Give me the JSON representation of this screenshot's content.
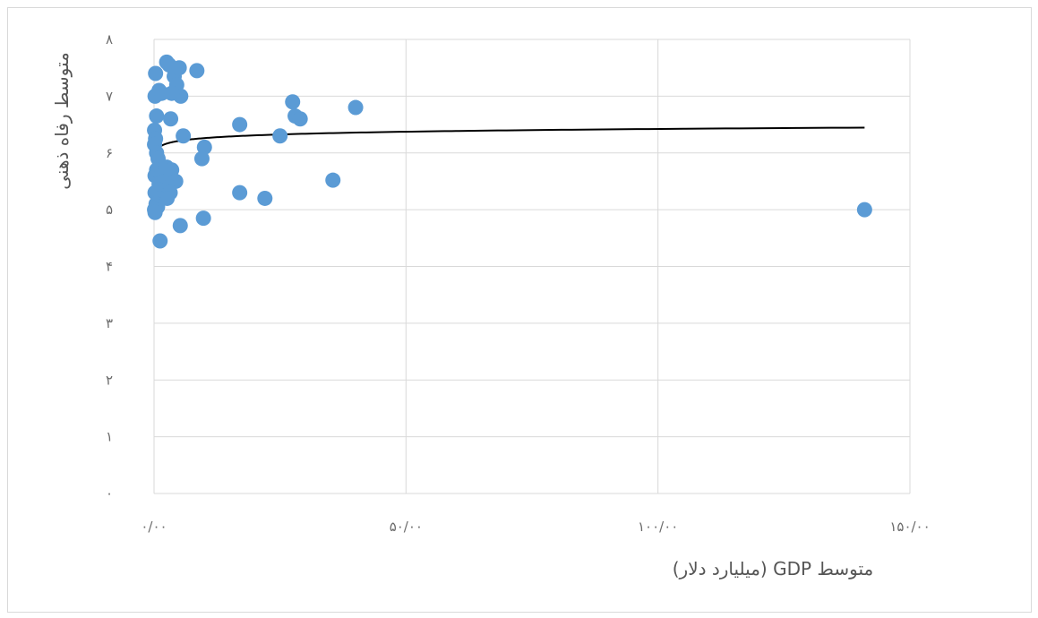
{
  "chart_data": {
    "type": "scatter",
    "title": "",
    "xlabel": "متوسط GDP (میلیارد دلار)",
    "ylabel": "متوسط رفاه ذهنی",
    "xlim": [
      0,
      150
    ],
    "ylim": [
      0,
      8
    ],
    "x_ticks": [
      0,
      50,
      100,
      150
    ],
    "x_tick_labels": [
      "۰/۰۰",
      "۵۰/۰۰",
      "۱۰۰/۰۰",
      "۱۵۰/۰۰"
    ],
    "y_ticks": [
      0,
      1,
      2,
      3,
      4,
      5,
      6,
      7,
      8
    ],
    "y_tick_labels": [
      "۰",
      "۱",
      "۲",
      "۳",
      "۴",
      "۵",
      "۶",
      "۷",
      "۸"
    ],
    "grid": true,
    "legend": "none",
    "colors": {
      "points": "#5b9bd5",
      "trendline": "#000000",
      "grid": "#d9d9d9"
    },
    "trendline": {
      "type": "logarithmic",
      "a": 6.1,
      "b": 0.07
    },
    "points": [
      {
        "x": 0.3,
        "y": 7.4
      },
      {
        "x": 1.0,
        "y": 7.1
      },
      {
        "x": 0.2,
        "y": 7.0
      },
      {
        "x": 1.5,
        "y": 7.05
      },
      {
        "x": 2.5,
        "y": 7.6
      },
      {
        "x": 3.0,
        "y": 7.55
      },
      {
        "x": 4.0,
        "y": 7.35
      },
      {
        "x": 4.5,
        "y": 7.2
      },
      {
        "x": 5.0,
        "y": 7.5
      },
      {
        "x": 5.3,
        "y": 7.0
      },
      {
        "x": 3.5,
        "y": 7.05
      },
      {
        "x": 8.5,
        "y": 7.45
      },
      {
        "x": 0.5,
        "y": 6.65
      },
      {
        "x": 3.3,
        "y": 6.6
      },
      {
        "x": 0.1,
        "y": 6.4
      },
      {
        "x": 0.3,
        "y": 6.25
      },
      {
        "x": 0.1,
        "y": 6.15
      },
      {
        "x": 0.5,
        "y": 6.0
      },
      {
        "x": 0.8,
        "y": 5.9
      },
      {
        "x": 5.8,
        "y": 6.3
      },
      {
        "x": 10.0,
        "y": 6.1
      },
      {
        "x": 9.5,
        "y": 5.9
      },
      {
        "x": 17.0,
        "y": 6.5
      },
      {
        "x": 25.0,
        "y": 6.3
      },
      {
        "x": 27.5,
        "y": 6.9
      },
      {
        "x": 28.0,
        "y": 6.65
      },
      {
        "x": 29.0,
        "y": 6.6
      },
      {
        "x": 40.0,
        "y": 6.8
      },
      {
        "x": 0.2,
        "y": 5.6
      },
      {
        "x": 0.5,
        "y": 5.7
      },
      {
        "x": 1.5,
        "y": 5.65
      },
      {
        "x": 2.0,
        "y": 5.5
      },
      {
        "x": 2.5,
        "y": 5.75
      },
      {
        "x": 3.5,
        "y": 5.7
      },
      {
        "x": 4.3,
        "y": 5.5
      },
      {
        "x": 1.0,
        "y": 5.45
      },
      {
        "x": 3.0,
        "y": 5.4
      },
      {
        "x": 1.0,
        "y": 5.35
      },
      {
        "x": 0.2,
        "y": 5.3
      },
      {
        "x": 2.2,
        "y": 5.25
      },
      {
        "x": 3.2,
        "y": 5.3
      },
      {
        "x": 1.2,
        "y": 5.2
      },
      {
        "x": 2.6,
        "y": 5.2
      },
      {
        "x": 0.4,
        "y": 5.1
      },
      {
        "x": 0.7,
        "y": 5.05
      },
      {
        "x": 0.1,
        "y": 5.0
      },
      {
        "x": 0.2,
        "y": 4.95
      },
      {
        "x": 17.0,
        "y": 5.3
      },
      {
        "x": 22.0,
        "y": 5.2
      },
      {
        "x": 35.5,
        "y": 5.52
      },
      {
        "x": 9.8,
        "y": 4.85
      },
      {
        "x": 5.2,
        "y": 4.72
      },
      {
        "x": 1.2,
        "y": 4.45
      },
      {
        "x": 141.0,
        "y": 5.0
      }
    ]
  }
}
